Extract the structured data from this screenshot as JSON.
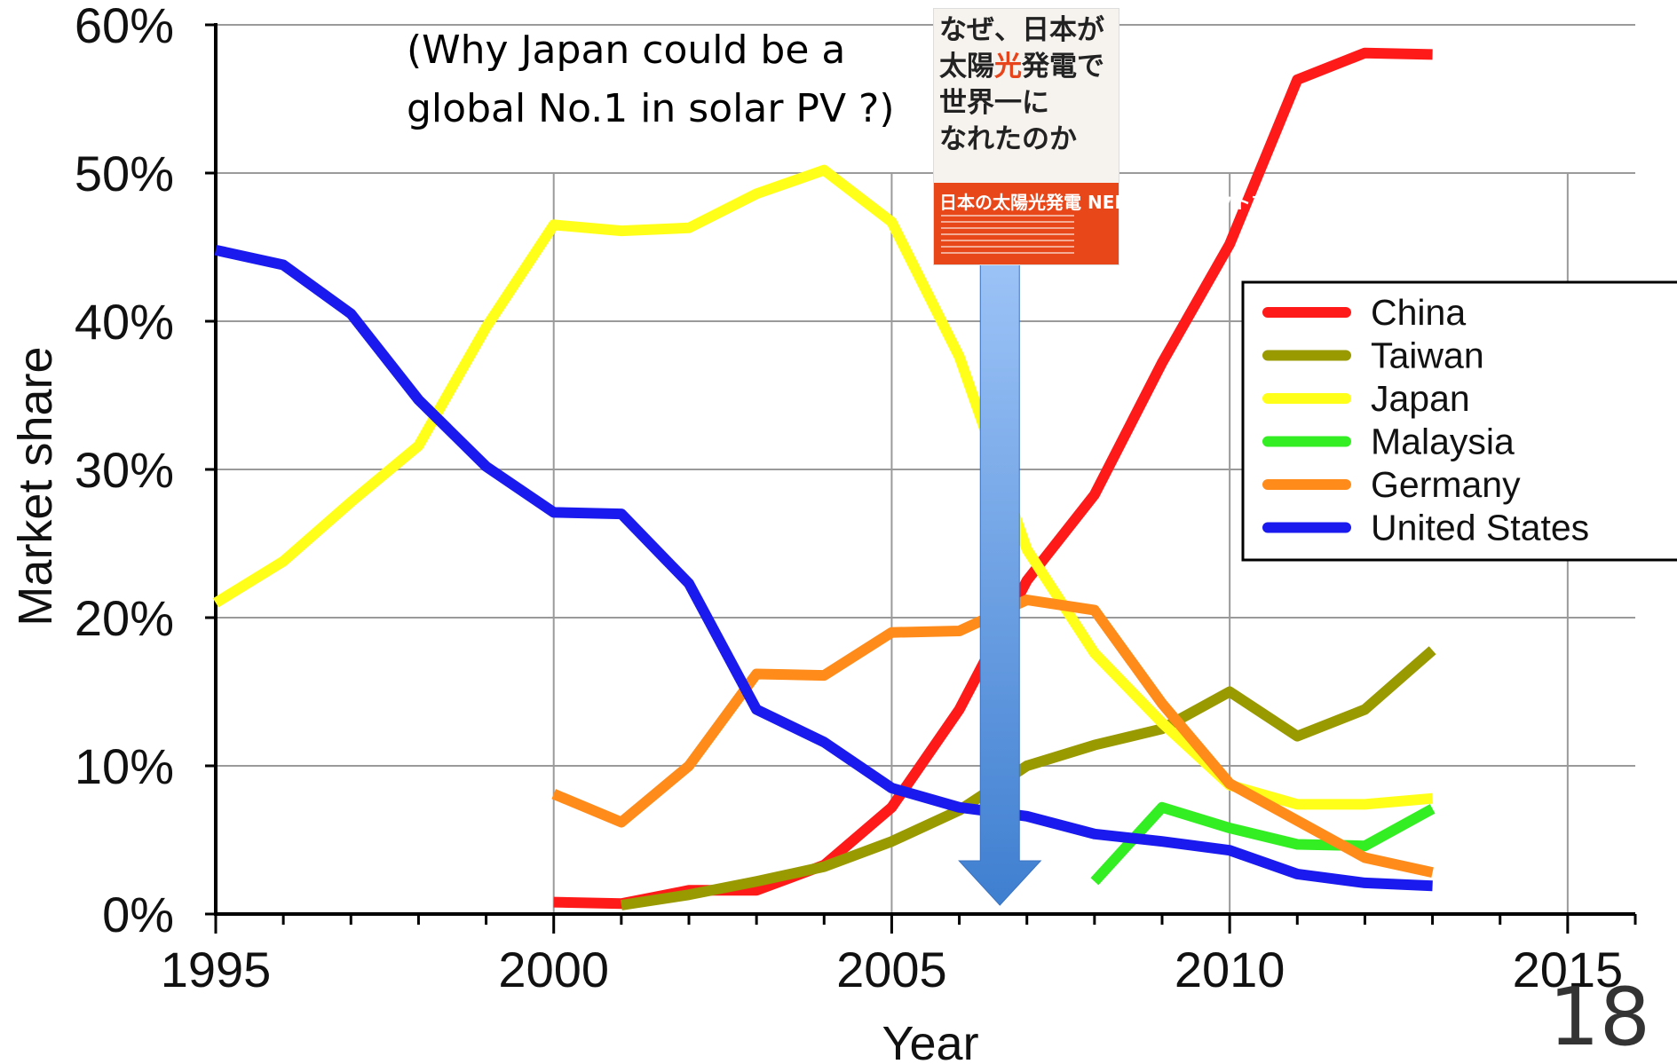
{
  "chart_data": {
    "type": "line",
    "xlabel": "Year",
    "ylabel": "Market share",
    "xlim": [
      1995,
      2016
    ],
    "ylim": [
      0,
      60
    ],
    "xticks": [
      1995,
      2000,
      2005,
      2010,
      2015
    ],
    "xtick_labels": [
      "1995",
      "2000",
      "2005",
      "2010",
      "2015"
    ],
    "yticks": [
      0,
      10,
      20,
      30,
      40,
      50,
      60
    ],
    "ytick_labels": [
      "0%",
      "10%",
      "20%",
      "30%",
      "40%",
      "50%",
      "60%"
    ],
    "grid": true,
    "legend_position": "right",
    "series": [
      {
        "name": "China",
        "color": "#ff1a1a",
        "points": [
          [
            2000,
            0.8
          ],
          [
            2001,
            0.7
          ],
          [
            2002,
            1.6
          ],
          [
            2003,
            1.6
          ],
          [
            2004,
            3.3
          ],
          [
            2005,
            7.2
          ],
          [
            2006,
            13.8
          ],
          [
            2007,
            22.5
          ],
          [
            2008,
            28.3
          ],
          [
            2009,
            37.2
          ],
          [
            2010,
            45.2
          ],
          [
            2011,
            56.3
          ],
          [
            2012,
            58.1
          ],
          [
            2013,
            58.0
          ]
        ]
      },
      {
        "name": "Taiwan",
        "color": "#999900",
        "points": [
          [
            2001,
            0.6
          ],
          [
            2002,
            1.3
          ],
          [
            2003,
            2.2
          ],
          [
            2004,
            3.2
          ],
          [
            2005,
            4.9
          ],
          [
            2006,
            7.0
          ],
          [
            2007,
            10.0
          ],
          [
            2008,
            11.4
          ],
          [
            2009,
            12.5
          ],
          [
            2010,
            15.0
          ],
          [
            2011,
            12.0
          ],
          [
            2012,
            13.8
          ],
          [
            2013,
            17.8
          ]
        ]
      },
      {
        "name": "Japan",
        "color": "#ffff1a",
        "points": [
          [
            1995,
            21.0
          ],
          [
            1996,
            23.8
          ],
          [
            1997,
            27.8
          ],
          [
            1998,
            31.6
          ],
          [
            1999,
            39.6
          ],
          [
            2000,
            46.5
          ],
          [
            2001,
            46.1
          ],
          [
            2002,
            46.3
          ],
          [
            2003,
            48.6
          ],
          [
            2004,
            50.2
          ],
          [
            2005,
            46.7
          ],
          [
            2006,
            37.6
          ],
          [
            2007,
            24.6
          ],
          [
            2008,
            17.6
          ],
          [
            2009,
            12.9
          ],
          [
            2010,
            8.7
          ],
          [
            2011,
            7.4
          ],
          [
            2012,
            7.4
          ],
          [
            2013,
            7.8
          ]
        ]
      },
      {
        "name": "Malaysia",
        "color": "#33ee22",
        "points": [
          [
            2008,
            2.2
          ],
          [
            2009,
            7.2
          ],
          [
            2010,
            5.8
          ],
          [
            2011,
            4.7
          ],
          [
            2012,
            4.6
          ],
          [
            2013,
            7.1
          ]
        ]
      },
      {
        "name": "Germany",
        "color": "#ff8c1a",
        "points": [
          [
            2000,
            8.1
          ],
          [
            2001,
            6.2
          ],
          [
            2002,
            10.0
          ],
          [
            2003,
            16.2
          ],
          [
            2004,
            16.1
          ],
          [
            2005,
            19.0
          ],
          [
            2006,
            19.1
          ],
          [
            2007,
            21.2
          ],
          [
            2008,
            20.5
          ],
          [
            2009,
            14.2
          ],
          [
            2010,
            8.8
          ],
          [
            2011,
            6.3
          ],
          [
            2012,
            3.8
          ],
          [
            2013,
            2.8
          ]
        ]
      },
      {
        "name": "United States",
        "color": "#1a1aee",
        "points": [
          [
            1995,
            44.8
          ],
          [
            1996,
            43.8
          ],
          [
            1997,
            40.5
          ],
          [
            1998,
            34.7
          ],
          [
            1999,
            30.2
          ],
          [
            2000,
            27.1
          ],
          [
            2001,
            27.0
          ],
          [
            2002,
            22.3
          ],
          [
            2003,
            13.8
          ],
          [
            2004,
            11.6
          ],
          [
            2005,
            8.5
          ],
          [
            2006,
            7.2
          ],
          [
            2007,
            6.6
          ],
          [
            2008,
            5.4
          ],
          [
            2009,
            4.9
          ],
          [
            2010,
            4.3
          ],
          [
            2011,
            2.7
          ],
          [
            2012,
            2.1
          ],
          [
            2013,
            1.9
          ]
        ]
      }
    ],
    "annotation": {
      "text_line1": "(Why Japan could be a",
      "text_line2": "global No.1 in solar PV ?)",
      "arrow_year": 2006.6,
      "arrow_from": 44.0,
      "arrow_to": 0.6
    }
  },
  "book_cover": {
    "title_before": "なぜ、日本が\n太陽",
    "title_highlight": "光",
    "title_after": "発電で\n世界一に\nなれたのか",
    "band_text": "日本の太陽光発電 NEDOプロジェクトを活写する!"
  },
  "page_number": "18"
}
